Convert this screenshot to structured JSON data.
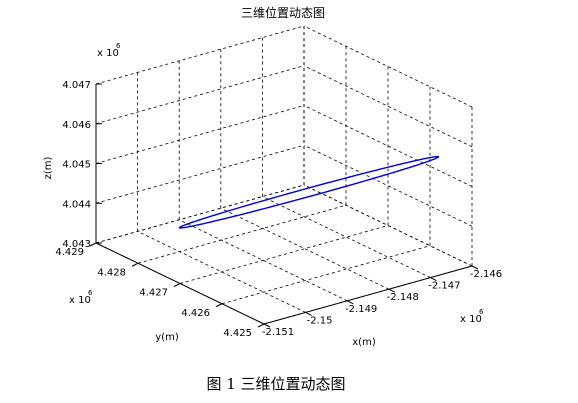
{
  "chart_data": {
    "type": "line3d",
    "title": "三维位置动态图",
    "xlabel": "x(m)",
    "ylabel": "y(m)",
    "zlabel": "z(m)",
    "x_multiplier": "x 10",
    "y_multiplier": "x 10",
    "z_multiplier": "x 10",
    "exponent": "6",
    "x_ticks": [
      "-2.151",
      "-2.15",
      "-2.149",
      "-2.148",
      "-2.147",
      "-2.146"
    ],
    "y_ticks": [
      "4.425",
      "4.426",
      "4.427",
      "4.428",
      "4.429"
    ],
    "z_ticks": [
      "4.043",
      "4.044",
      "4.045",
      "4.046",
      "4.047"
    ],
    "xlim": [
      -2.151,
      -2.146
    ],
    "ylim": [
      4.425,
      4.429
    ],
    "zlim": [
      4.043,
      4.047
    ],
    "grid": true,
    "series_color": "#0000cc",
    "series": [
      {
        "shape": "thin closed loop",
        "end_a": {
          "x": -2.1495,
          "y": 4.4285,
          "z": 4.0432
        },
        "end_b": {
          "x": -2.1462,
          "y": 4.4256,
          "z": 4.0455
        }
      }
    ]
  },
  "caption": "图 1  三维位置动态图"
}
